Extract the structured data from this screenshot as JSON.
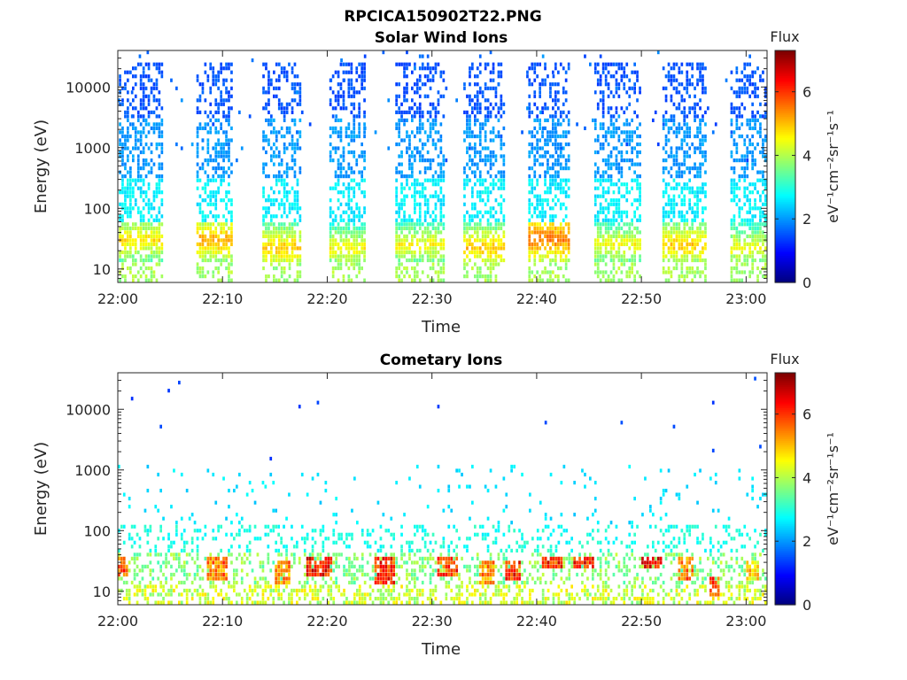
{
  "figure": {
    "filename": "RPCICA150902T22.PNG"
  },
  "colorbar": {
    "title": "Flux",
    "unit_label": "eV⁻¹cm⁻²sr⁻¹s⁻¹",
    "ticks": [
      "0",
      "2",
      "4",
      "6"
    ],
    "range": [
      0,
      7.3
    ],
    "colormap": "jet"
  },
  "chart_data": [
    {
      "type": "heatmap",
      "title": "Solar Wind Ions",
      "xlabel": "Time",
      "ylabel": "Energy (eV)",
      "x_ticks": [
        "22:00",
        "22:10",
        "22:20",
        "22:30",
        "22:40",
        "22:50",
        "23:00"
      ],
      "y_ticks": [
        "10",
        "100",
        "1000",
        "10000"
      ],
      "y_scale": "log",
      "x_range_min": [
        0,
        62
      ],
      "y_range_eV": [
        6,
        40000
      ],
      "c_range": [
        0,
        7.3
      ],
      "bursts_center_min": [
        1.5,
        9,
        15.5,
        22,
        29,
        35,
        41,
        47.5,
        54,
        60.5
      ],
      "bursts": [
        {
          "t0": 0.1,
          "t1": 4.2,
          "peak_eV": 30,
          "peak_flux": 4.8
        },
        {
          "t0": 7.5,
          "t1": 10.8,
          "peak_eV": 30,
          "peak_flux": 5.2
        },
        {
          "t0": 13.8,
          "t1": 17.5,
          "peak_eV": 22,
          "peak_flux": 5.0
        },
        {
          "t0": 20.2,
          "t1": 23.5,
          "peak_eV": 22,
          "peak_flux": 4.6
        },
        {
          "t0": 26.5,
          "t1": 31.2,
          "peak_eV": 25,
          "peak_flux": 4.6
        },
        {
          "t0": 33.0,
          "t1": 36.8,
          "peak_eV": 22,
          "peak_flux": 5.0
        },
        {
          "t0": 39.2,
          "t1": 43.0,
          "peak_eV": 32,
          "peak_flux": 5.6
        },
        {
          "t0": 45.5,
          "t1": 49.8,
          "peak_eV": 25,
          "peak_flux": 4.6
        },
        {
          "t0": 52.0,
          "t1": 56.2,
          "peak_eV": 25,
          "peak_flux": 5.0
        },
        {
          "t0": 58.5,
          "t1": 61.8,
          "peak_eV": 22,
          "peak_flux": 4.6
        }
      ]
    },
    {
      "type": "heatmap",
      "title": "Cometary Ions",
      "xlabel": "Time",
      "ylabel": "Energy (eV)",
      "x_ticks": [
        "22:00",
        "22:10",
        "22:20",
        "22:30",
        "22:40",
        "22:50",
        "23:00"
      ],
      "y_ticks": [
        "10",
        "100",
        "1000",
        "10000"
      ],
      "y_scale": "log",
      "x_range_min": [
        0,
        62
      ],
      "y_range_eV": [
        6,
        40000
      ],
      "c_range": [
        0,
        7.3
      ],
      "hot_spots": [
        {
          "t0": 0.0,
          "t1": 0.8,
          "e0": 18,
          "e1": 40,
          "flux": 6.5
        },
        {
          "t0": 8.5,
          "t1": 10.5,
          "e0": 15,
          "e1": 40,
          "flux": 6.3
        },
        {
          "t0": 15.0,
          "t1": 16.5,
          "e0": 12,
          "e1": 30,
          "flux": 6.0
        },
        {
          "t0": 18.0,
          "t1": 20.5,
          "e0": 18,
          "e1": 40,
          "flux": 7.0
        },
        {
          "t0": 24.5,
          "t1": 26.5,
          "e0": 12,
          "e1": 40,
          "flux": 6.8
        },
        {
          "t0": 30.5,
          "t1": 32.5,
          "e0": 18,
          "e1": 40,
          "flux": 6.6
        },
        {
          "t0": 34.5,
          "t1": 36.0,
          "e0": 12,
          "e1": 30,
          "flux": 6.0
        },
        {
          "t0": 37.0,
          "t1": 38.5,
          "e0": 14,
          "e1": 30,
          "flux": 6.8
        },
        {
          "t0": 40.5,
          "t1": 42.5,
          "e0": 22,
          "e1": 40,
          "flux": 6.8
        },
        {
          "t0": 43.5,
          "t1": 45.5,
          "e0": 22,
          "e1": 40,
          "flux": 7.0
        },
        {
          "t0": 50.0,
          "t1": 52.0,
          "e0": 22,
          "e1": 40,
          "flux": 7.0
        },
        {
          "t0": 53.5,
          "t1": 55.0,
          "e0": 14,
          "e1": 35,
          "flux": 6.2
        },
        {
          "t0": 56.5,
          "t1": 57.5,
          "e0": 8,
          "e1": 18,
          "flux": 6.5
        },
        {
          "t0": 60.0,
          "t1": 61.2,
          "e0": 14,
          "e1": 30,
          "flux": 5.5
        }
      ]
    }
  ]
}
